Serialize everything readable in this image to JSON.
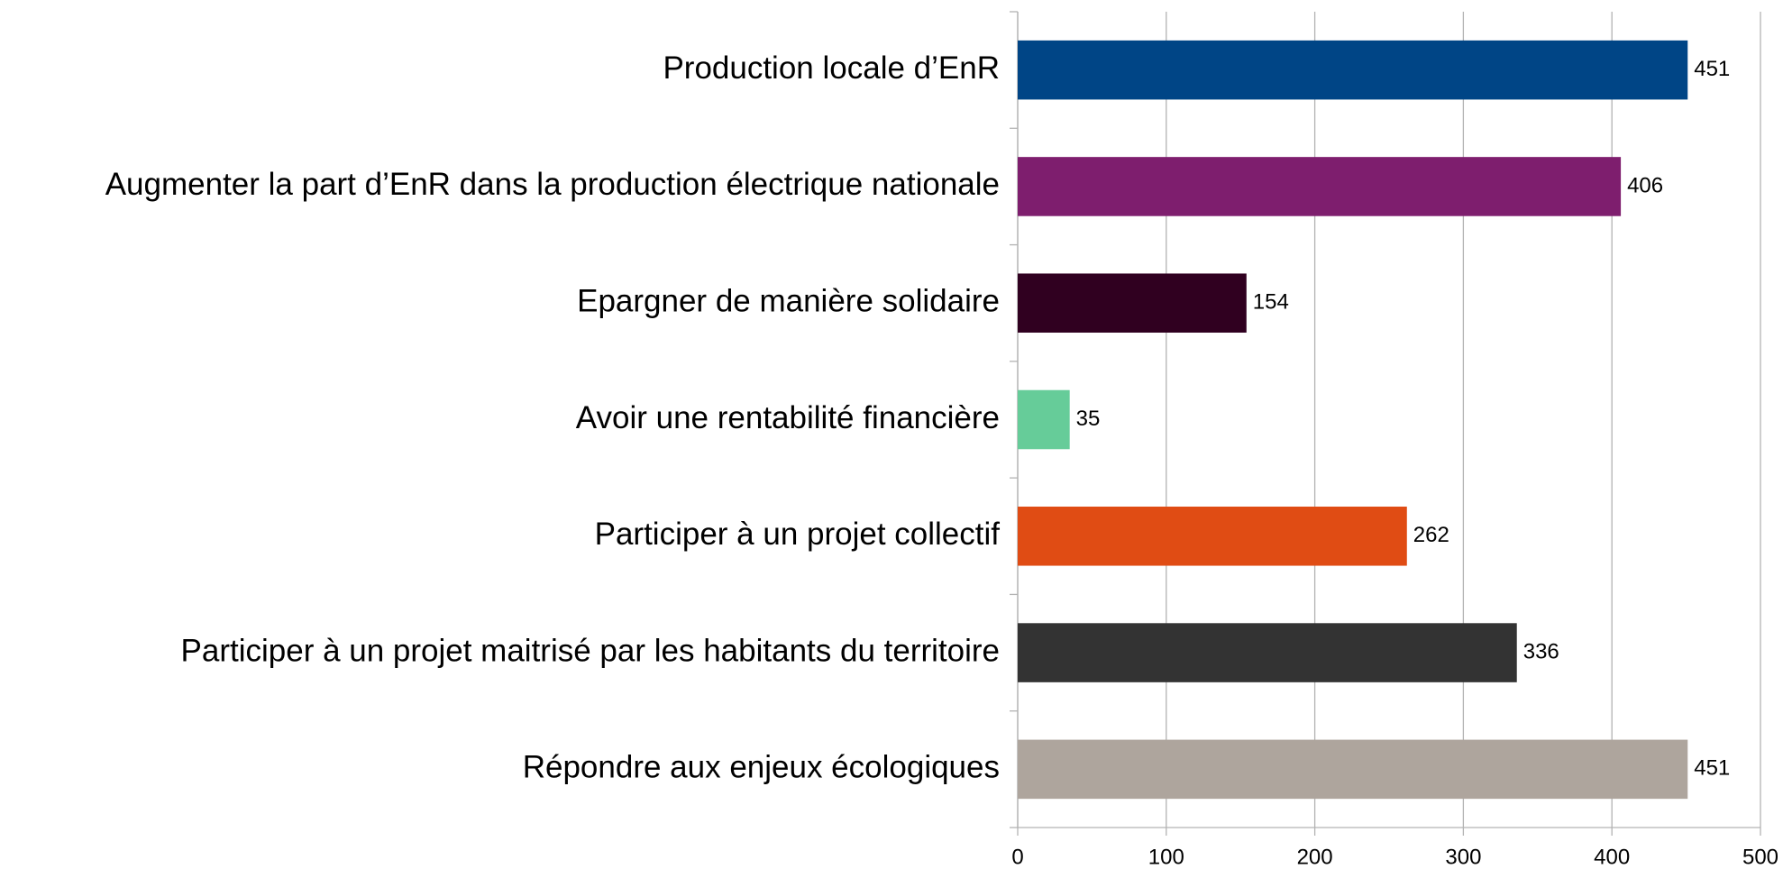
{
  "chart_data": {
    "type": "bar",
    "orientation": "horizontal",
    "categories": [
      "Production locale d’EnR",
      "Augmenter la part d’EnR dans la production électrique nationale",
      "Epargner de manière solidaire",
      "Avoir une rentabilité financière",
      "Participer à un projet collectif",
      "Participer à un projet maitrisé par les habitants du territoire",
      "Répondre aux enjeux écologiques"
    ],
    "values": [
      451,
      406,
      154,
      35,
      262,
      336,
      451
    ],
    "colors": [
      "#004586",
      "#7e1e6e",
      "#300020",
      "#66cc99",
      "#e04c14",
      "#333333",
      "#aea59d"
    ],
    "xlim": [
      0,
      500
    ],
    "xticks": [
      0,
      100,
      200,
      300,
      400,
      500
    ],
    "grid": true
  }
}
